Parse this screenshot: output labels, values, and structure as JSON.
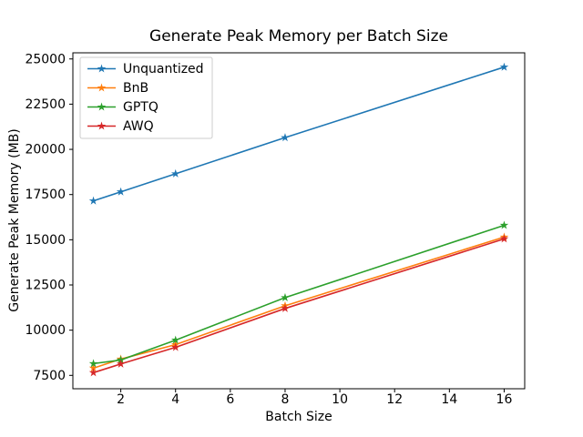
{
  "chart_data": {
    "type": "line",
    "title": "Generate Peak Memory per Batch Size",
    "xlabel": "Batch Size",
    "ylabel": "Generate Peak Memory (MB)",
    "x": [
      1,
      2,
      4,
      8,
      16
    ],
    "series": [
      {
        "name": "Unquantized",
        "color": "#1f77b4",
        "values": [
          17150,
          17650,
          18650,
          20650,
          24550
        ]
      },
      {
        "name": "BnB",
        "color": "#ff7f0e",
        "values": [
          7900,
          8400,
          9200,
          11350,
          15150
        ]
      },
      {
        "name": "GPTQ",
        "color": "#2ca02c",
        "values": [
          8150,
          8350,
          9450,
          11800,
          15800
        ]
      },
      {
        "name": "AWQ",
        "color": "#d62728",
        "values": [
          7650,
          8130,
          9050,
          11200,
          15050
        ]
      }
    ],
    "marker": "star",
    "xticks": [
      2,
      4,
      6,
      8,
      10,
      12,
      14,
      16
    ],
    "yticks": [
      7500,
      10000,
      12500,
      15000,
      17500,
      20000,
      22500,
      25000
    ],
    "xlim": [
      0.25,
      16.75
    ],
    "ylim": [
      6760,
      25340
    ],
    "grid": false,
    "legend_position": "upper left",
    "spine_color": "#000000",
    "tick_label_color": "#000000",
    "legend_border_color": "#cccccc",
    "background_color": "#ffffff"
  }
}
